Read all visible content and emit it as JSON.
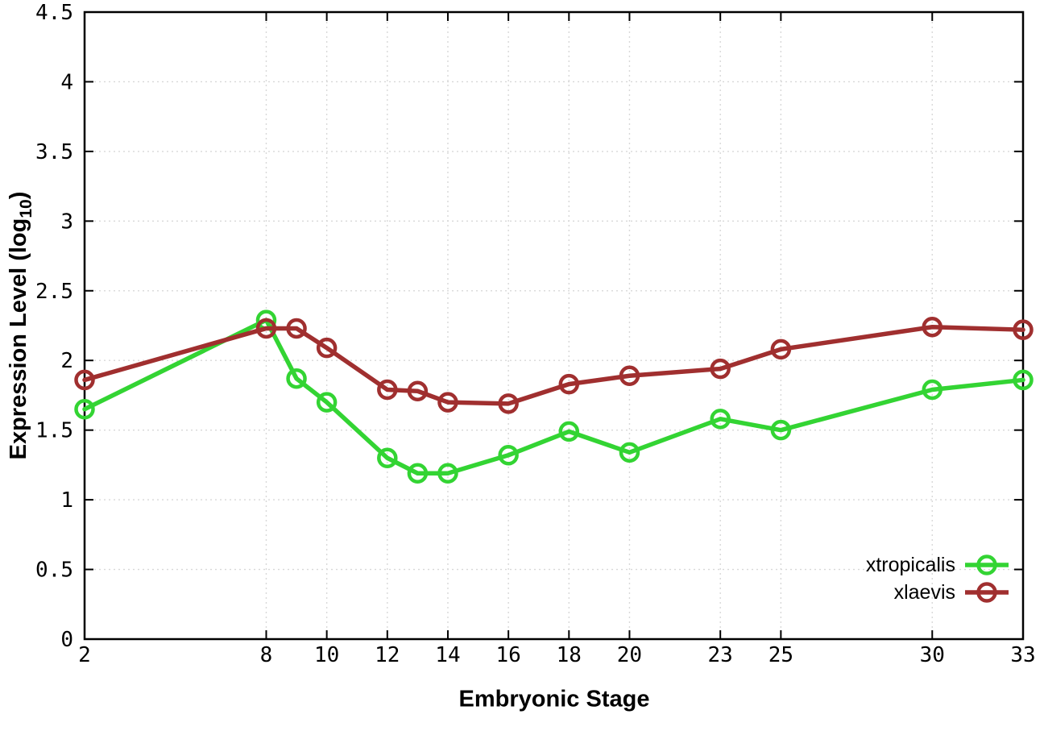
{
  "chart_data": {
    "type": "line",
    "title": "",
    "xlabel": "Embryonic Stage",
    "ylabel_prefix": "Expression Level (log",
    "ylabel_subscript": "10",
    "ylabel_suffix": ")",
    "xlim": [
      2,
      33
    ],
    "ylim": [
      0,
      4.5
    ],
    "grid": true,
    "legend_position": "bottom-right-inside",
    "x_tick_labels": [
      "2",
      "8",
      "10",
      "12",
      "14",
      "16",
      "18",
      "20",
      "23",
      "25",
      "30",
      "33"
    ],
    "y_tick_labels": [
      "0",
      "0.5",
      "1",
      "1.5",
      "2",
      "2.5",
      "3",
      "3.5",
      "4",
      "4.5"
    ],
    "x": [
      2,
      8,
      9,
      10,
      12,
      13,
      14,
      16,
      18,
      20,
      23,
      25,
      30,
      33
    ],
    "series": [
      {
        "name": "xtropicalis",
        "color": "#33d433",
        "values": [
          1.65,
          2.29,
          1.87,
          1.7,
          1.3,
          1.19,
          1.19,
          1.32,
          1.49,
          1.34,
          1.58,
          1.5,
          1.79,
          1.86
        ]
      },
      {
        "name": "xlaevis",
        "color": "#a02f2f",
        "values": [
          1.86,
          2.23,
          2.23,
          2.09,
          1.79,
          1.78,
          1.7,
          1.69,
          1.83,
          1.89,
          1.94,
          2.08,
          2.24,
          2.22
        ]
      }
    ],
    "grid_color": "#d8d8d8",
    "axis_color": "#000000"
  }
}
